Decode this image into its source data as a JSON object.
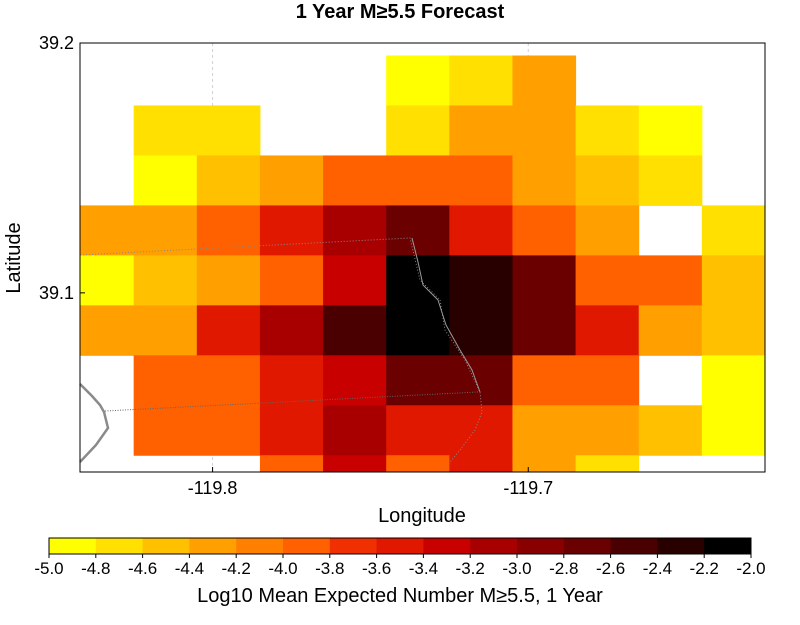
{
  "chart_data": {
    "type": "heatmap",
    "title": "1 Year M≥5.5 Forecast",
    "xlabel": "Longitude",
    "ylabel": "Latitude",
    "xlim": [
      -119.842,
      -119.625
    ],
    "ylim": [
      39.0283,
      39.2
    ],
    "x_ticks": [
      {
        "value": -119.8,
        "label": "-119.8"
      },
      {
        "value": -119.7,
        "label": "-119.7"
      }
    ],
    "y_ticks": [
      {
        "value": 39.2,
        "label": "39.2"
      },
      {
        "value": 39.1,
        "label": "39.1"
      }
    ],
    "grid": true,
    "cell_size_deg": 0.02,
    "columns": [
      "-119.835",
      "-119.815",
      "-119.795",
      "-119.775",
      "-119.755",
      "-119.735",
      "-119.715",
      "-119.695",
      "-119.675",
      "-119.655",
      "-119.635"
    ],
    "rows": [
      {
        "lat": 39.185,
        "values": [
          null,
          null,
          null,
          null,
          null,
          -5.0,
          -4.8,
          -4.4,
          null,
          null,
          null
        ]
      },
      {
        "lat": 39.165,
        "values": [
          null,
          -4.8,
          -4.8,
          null,
          null,
          -4.8,
          -4.4,
          -4.4,
          -4.8,
          -5.0,
          null
        ]
      },
      {
        "lat": 39.145,
        "values": [
          null,
          -5.0,
          -4.6,
          -4.4,
          -4.0,
          -4.0,
          -4.0,
          -4.4,
          -4.6,
          -4.8,
          null
        ]
      },
      {
        "lat": 39.125,
        "values": [
          -4.4,
          -4.4,
          -4.0,
          -3.6,
          -3.2,
          -2.8,
          -3.6,
          -4.0,
          -4.4,
          null,
          -4.8
        ]
      },
      {
        "lat": 39.105,
        "values": [
          -5.0,
          -4.6,
          -4.4,
          -4.0,
          -3.4,
          -2.0,
          -2.4,
          -2.8,
          -4.0,
          -4.0,
          -4.6
        ]
      },
      {
        "lat": 39.085,
        "values": [
          -4.4,
          -4.4,
          -3.6,
          -3.2,
          -2.6,
          -2.2,
          -2.4,
          -2.8,
          -3.6,
          -4.4,
          -4.6
        ]
      },
      {
        "lat": 39.065,
        "values": [
          null,
          -4.0,
          -4.0,
          -3.6,
          -3.4,
          -2.8,
          -2.8,
          -4.0,
          -4.0,
          null,
          -5.0
        ]
      },
      {
        "lat": 39.045,
        "values": [
          null,
          -4.0,
          -4.0,
          -3.6,
          -3.2,
          -3.6,
          -3.6,
          -4.4,
          -4.4,
          -4.6,
          -5.0
        ]
      },
      {
        "lat": 39.025,
        "values": [
          null,
          null,
          null,
          -4.0,
          -3.4,
          -4.0,
          -3.6,
          -4.4,
          -4.8,
          null,
          null
        ]
      }
    ],
    "colorbar": {
      "label": "Log10 Mean Expected Number M≥5.5, 1 Year",
      "min": -5.0,
      "max": -2.0,
      "ticks": [
        "-5.0",
        "-4.8",
        "-4.6",
        "-4.4",
        "-4.2",
        "-4.0",
        "-3.8",
        "-3.6",
        "-3.4",
        "-3.2",
        "-3.0",
        "-2.8",
        "-2.6",
        "-2.4",
        "-2.2",
        "-2.0"
      ],
      "colors": [
        "#ffff00",
        "#ffe000",
        "#ffc000",
        "#ffa000",
        "#ff8000",
        "#ff6000",
        "#f03000",
        "#e01800",
        "#c80000",
        "#a80000",
        "#880000",
        "#6a0000",
        "#4a0000",
        "#280000",
        "#000000"
      ]
    }
  }
}
